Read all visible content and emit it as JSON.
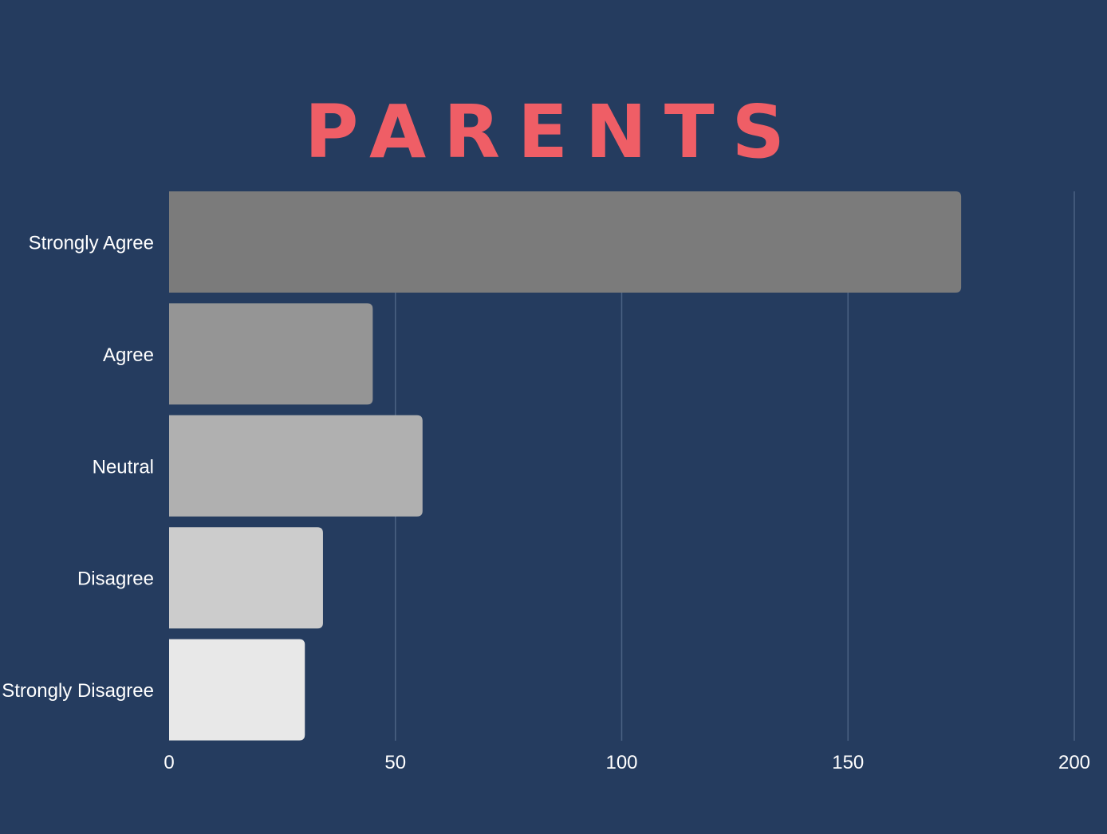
{
  "chart_data": {
    "type": "bar",
    "orientation": "horizontal",
    "title": "PARENTS",
    "categories": [
      "Strongly Agree",
      "Agree",
      "Neutral",
      "Disagree",
      "Strongly Disagree"
    ],
    "values": [
      175,
      45,
      56,
      34,
      30
    ],
    "xlim": [
      0,
      200
    ],
    "xticks": [
      0,
      50,
      100,
      150,
      200
    ],
    "grid": true,
    "legend": "none"
  },
  "colors": {
    "background": "#253c5f",
    "title": "#ef5e66",
    "bars": [
      "#7b7b7b",
      "#959595",
      "#b0b0b0",
      "#cccccc",
      "#e8e8e8"
    ],
    "grid": "#4b6283",
    "text": "#ffffff"
  }
}
